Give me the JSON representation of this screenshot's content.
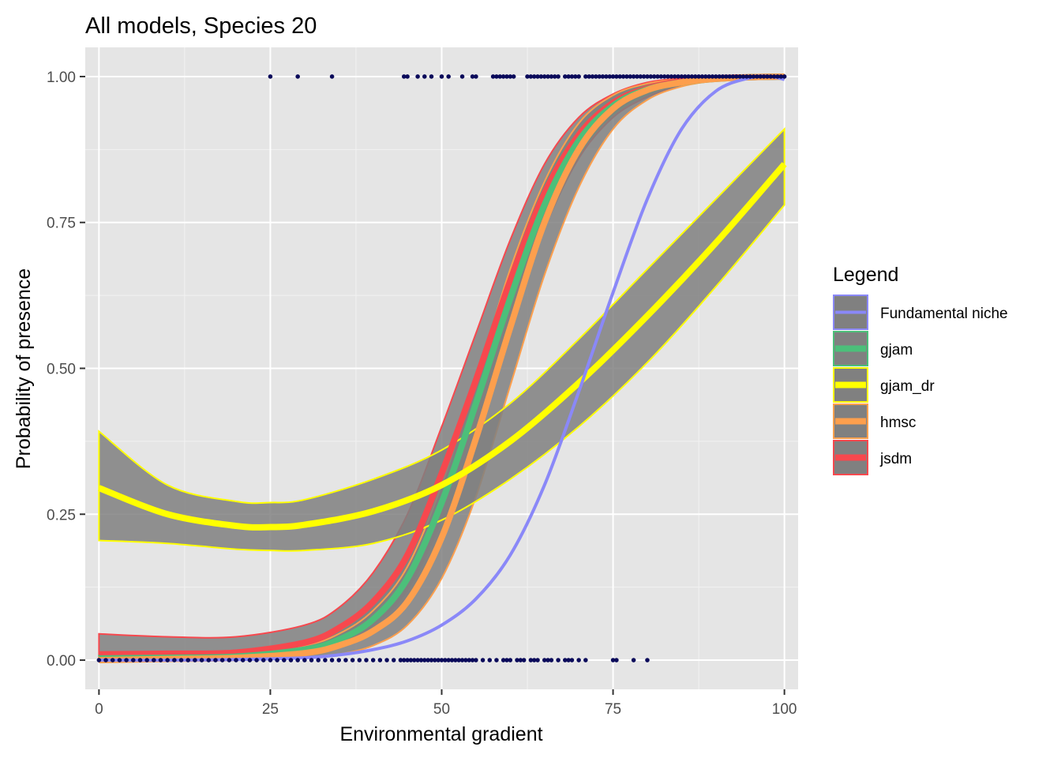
{
  "chart_data": {
    "type": "line",
    "title": "All models, Species 20",
    "xlabel": "Environmental gradient",
    "ylabel": "Probability of presence",
    "xlim": [
      -2,
      102
    ],
    "ylim": [
      -0.05,
      1.05
    ],
    "x_ticks": [
      0,
      25,
      50,
      75,
      100
    ],
    "x_tick_labels": [
      "0",
      "25",
      "50",
      "75",
      "100"
    ],
    "y_ticks": [
      0,
      0.25,
      0.5,
      0.75,
      1
    ],
    "y_tick_labels": [
      "0.00",
      "0.25",
      "0.50",
      "0.75",
      "1.00"
    ],
    "grid": true,
    "panel_background": "#e5e5e5",
    "legend": {
      "title": "Legend",
      "position": "right",
      "items": [
        "Fundamental niche",
        "gjam",
        "gjam_dr",
        "hmsc",
        "jsdm"
      ]
    },
    "band_fill": "#808080",
    "series": [
      {
        "name": "jsdm",
        "color": "#f7484e",
        "line_width": 8,
        "x": [
          0,
          10,
          20,
          30,
          35,
          40,
          45,
          50,
          55,
          60,
          65,
          70,
          75,
          80,
          85,
          90,
          95,
          100
        ],
        "y": [
          0.01,
          0.011,
          0.013,
          0.03,
          0.055,
          0.1,
          0.18,
          0.32,
          0.48,
          0.65,
          0.8,
          0.9,
          0.955,
          0.98,
          0.992,
          0.997,
          0.999,
          1.0
        ],
        "lower": [
          0.0,
          0.0,
          0.0,
          0.012,
          0.03,
          0.06,
          0.12,
          0.24,
          0.4,
          0.58,
          0.74,
          0.86,
          0.93,
          0.965,
          0.985,
          0.995,
          0.998,
          0.999
        ],
        "upper": [
          0.045,
          0.04,
          0.04,
          0.06,
          0.09,
          0.15,
          0.25,
          0.4,
          0.56,
          0.72,
          0.85,
          0.93,
          0.97,
          0.99,
          0.997,
          0.999,
          1.0,
          1.0
        ]
      },
      {
        "name": "gjam",
        "color": "#4cbf7a",
        "line_width": 8,
        "x": [
          0,
          10,
          20,
          30,
          35,
          40,
          45,
          50,
          55,
          60,
          65,
          70,
          75,
          80,
          85,
          90,
          95,
          100
        ],
        "y": [
          0.003,
          0.004,
          0.006,
          0.018,
          0.035,
          0.07,
          0.14,
          0.27,
          0.44,
          0.62,
          0.78,
          0.89,
          0.95,
          0.978,
          0.99,
          0.996,
          0.999,
          1.0
        ],
        "lower": [
          0.0,
          0.001,
          0.002,
          0.01,
          0.022,
          0.05,
          0.105,
          0.22,
          0.39,
          0.57,
          0.74,
          0.865,
          0.935,
          0.97,
          0.986,
          0.994,
          0.998,
          0.999
        ],
        "upper": [
          0.008,
          0.009,
          0.012,
          0.028,
          0.05,
          0.095,
          0.175,
          0.32,
          0.49,
          0.665,
          0.815,
          0.91,
          0.962,
          0.985,
          0.994,
          0.998,
          1.0,
          1.0
        ]
      },
      {
        "name": "hmsc",
        "color": "#fd9f4d",
        "line_width": 8,
        "x": [
          0,
          10,
          20,
          30,
          35,
          40,
          45,
          50,
          55,
          60,
          65,
          70,
          75,
          80,
          85,
          90,
          95,
          100
        ],
        "y": [
          0.0,
          0.002,
          0.004,
          0.012,
          0.025,
          0.05,
          0.1,
          0.21,
          0.38,
          0.57,
          0.75,
          0.875,
          0.945,
          0.977,
          0.99,
          0.996,
          0.999,
          1.0
        ],
        "lower": [
          0.0,
          0.0,
          0.001,
          0.004,
          0.01,
          0.025,
          0.06,
          0.14,
          0.28,
          0.47,
          0.66,
          0.81,
          0.91,
          0.96,
          0.983,
          0.993,
          0.998,
          0.999
        ],
        "upper": [
          0.005,
          0.007,
          0.01,
          0.025,
          0.045,
          0.085,
          0.16,
          0.3,
          0.48,
          0.67,
          0.82,
          0.92,
          0.968,
          0.988,
          0.996,
          0.999,
          1.0,
          1.0
        ]
      },
      {
        "name": "gjam_dr",
        "color": "#ffff00",
        "line_width": 8,
        "x": [
          0,
          10,
          20,
          25,
          30,
          40,
          50,
          60,
          70,
          80,
          90,
          100
        ],
        "y": [
          0.295,
          0.25,
          0.23,
          0.228,
          0.232,
          0.255,
          0.3,
          0.375,
          0.475,
          0.59,
          0.715,
          0.85
        ],
        "lower": [
          0.205,
          0.2,
          0.19,
          0.188,
          0.188,
          0.2,
          0.24,
          0.31,
          0.4,
          0.51,
          0.64,
          0.78
        ],
        "upper": [
          0.392,
          0.3,
          0.272,
          0.27,
          0.275,
          0.31,
          0.36,
          0.44,
          0.55,
          0.67,
          0.79,
          0.91
        ]
      },
      {
        "name": "Fundamental niche",
        "color": "#8a88f8",
        "line_width": 4,
        "x": [
          0,
          10,
          20,
          30,
          35,
          40,
          45,
          50,
          55,
          60,
          65,
          70,
          75,
          80,
          85,
          90,
          95,
          98,
          100
        ],
        "y": [
          0.0,
          0.0,
          0.001,
          0.004,
          0.009,
          0.018,
          0.033,
          0.06,
          0.105,
          0.18,
          0.3,
          0.46,
          0.63,
          0.79,
          0.91,
          0.975,
          0.998,
          1.0,
          0.995
        ]
      }
    ],
    "observations": {
      "color": "#0a0a5a",
      "present_x": [
        25,
        29,
        34,
        44.5,
        45,
        46.5,
        47.5,
        48.5,
        50,
        51,
        53,
        54.5,
        55,
        57.5,
        58,
        58.5,
        59,
        59.5,
        60,
        60.5,
        62.5,
        63,
        63.5,
        64,
        64.5,
        65,
        65.5,
        66,
        66.5,
        67,
        68,
        68.5,
        69,
        69.5,
        70,
        71,
        71.5,
        72,
        72.5,
        73,
        73.5,
        74,
        74.5,
        75,
        75.5,
        76,
        76.5,
        77,
        77.5,
        78,
        78.5,
        79,
        79.5,
        80,
        80.5,
        81,
        81.5,
        82,
        82.5,
        83,
        83.5,
        84,
        84.5,
        85,
        85.5,
        86,
        86.5,
        87,
        87.5,
        88,
        88.5,
        89,
        89.5,
        90,
        90.5,
        91,
        91.5,
        92,
        92.5,
        93,
        93.5,
        94,
        94.5,
        95,
        95.5,
        96,
        96.5,
        97,
        97.5,
        98,
        98.5,
        99,
        99.5,
        100
      ],
      "absent_x": [
        0,
        1,
        2,
        3,
        4,
        5,
        6,
        7,
        8,
        9,
        10,
        11,
        12,
        13,
        14,
        15,
        16,
        17,
        18,
        19,
        20,
        21,
        22,
        23,
        24,
        25,
        26,
        27,
        28,
        29,
        30,
        31,
        32,
        33,
        34,
        35,
        36,
        37,
        38,
        39,
        40,
        41,
        42,
        43,
        44,
        44.5,
        45,
        45.5,
        46,
        46.5,
        47,
        47.5,
        48,
        48.5,
        49,
        49.5,
        50,
        50.5,
        51,
        51.5,
        52,
        52.5,
        53,
        53.5,
        54,
        54.5,
        55,
        56,
        57,
        58,
        59,
        59.5,
        60,
        61,
        61.5,
        62,
        63,
        63.5,
        64,
        65,
        65.5,
        66,
        67,
        68,
        68.5,
        69,
        70,
        71,
        75,
        75.5,
        78,
        80
      ]
    }
  }
}
